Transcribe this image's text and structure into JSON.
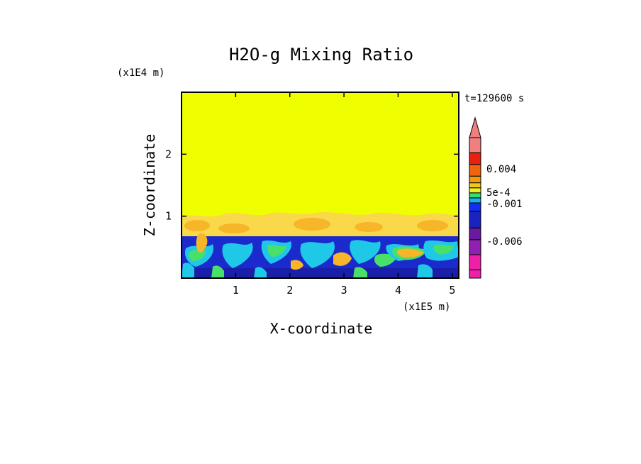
{
  "chart_data": {
    "type": "heatmap",
    "title": "H2O-g Mixing Ratio",
    "xlabel": "X-coordinate",
    "ylabel": "Z-coordinate",
    "x_scale_label": "(x1E5 m)",
    "y_scale_label": "(x1E4 m)",
    "time_label": "t=129600 s",
    "xlim": [
      0,
      5.12
    ],
    "ylim": [
      0,
      3.0
    ],
    "x_ticks": [
      {
        "value": 1,
        "label": "1"
      },
      {
        "value": 2,
        "label": "2"
      },
      {
        "value": 3,
        "label": "3"
      },
      {
        "value": 4,
        "label": "4"
      },
      {
        "value": 5,
        "label": "5"
      }
    ],
    "y_ticks": [
      {
        "value": 1,
        "label": "1"
      },
      {
        "value": 2,
        "label": "2"
      }
    ],
    "colorbar": {
      "colors_bottom_to_top": [
        "#ee20aa",
        "#ee20aa",
        "#9020b0",
        "#6a1aa0",
        "#1a22c0",
        "#1030f0",
        "#18b0f0",
        "#30e070",
        "#f0f020",
        "#f0c820",
        "#f09a10",
        "#f06410",
        "#e82010",
        "#f08080"
      ],
      "tick_labels": [
        "0.004",
        "5e-4",
        "-0.001",
        "-0.006"
      ]
    },
    "fields": {
      "upper_region": {
        "z_range": [
          1.05,
          3.0
        ],
        "color": "#f0ff00"
      },
      "transition_region": {
        "z_range": [
          0.72,
          1.05
        ],
        "color": "#f9d84a"
      },
      "lower_region": {
        "z_range": [
          0,
          0.72
        ],
        "color": "#1a2acc"
      }
    }
  }
}
